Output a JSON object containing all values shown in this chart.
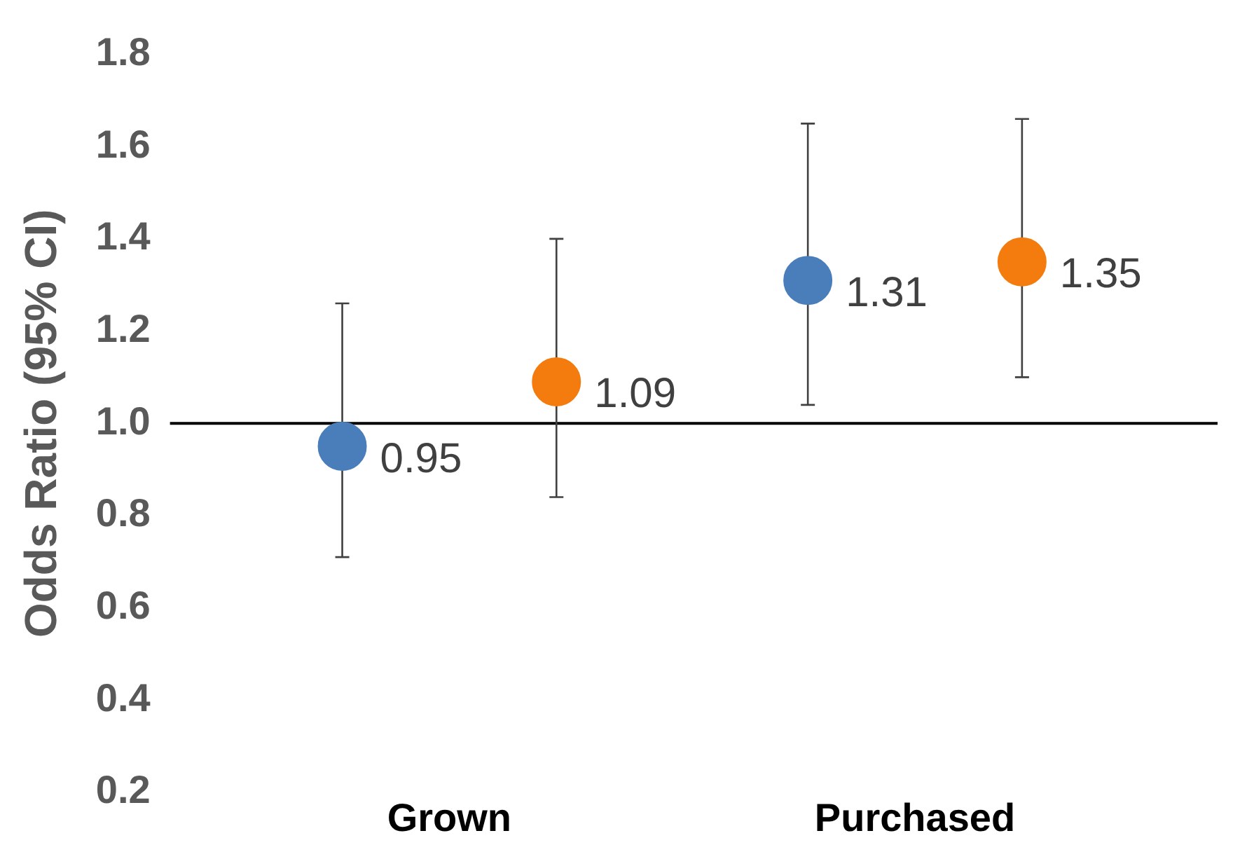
{
  "chart_data": {
    "type": "scatter",
    "ylabel": "Odds Ratio (95% CI)",
    "categories": [
      "Grown",
      "Purchased"
    ],
    "series": [
      {
        "color": "#4a7ebb",
        "values": [
          0.95,
          1.31
        ],
        "errors": [
          [
            0.71,
            1.26
          ],
          [
            1.04,
            1.65
          ]
        ]
      },
      {
        "color": "#f47b0e",
        "values": [
          1.09,
          1.35
        ],
        "errors": [
          [
            0.84,
            1.4
          ],
          [
            1.1,
            1.66
          ]
        ]
      }
    ],
    "ylim": [
      0.2,
      1.8
    ],
    "yticks": [
      0.2,
      0.4,
      0.6,
      0.8,
      {
        "value": 1.0,
        "label": "1.0"
      },
      1.2,
      1.4,
      1.6,
      1.8
    ],
    "ref_lines": [
      {
        "axis": "y",
        "value": 1.0,
        "color": "#000000"
      }
    ],
    "data_labels": true,
    "grid": false,
    "legend": false,
    "marker": "circle"
  }
}
